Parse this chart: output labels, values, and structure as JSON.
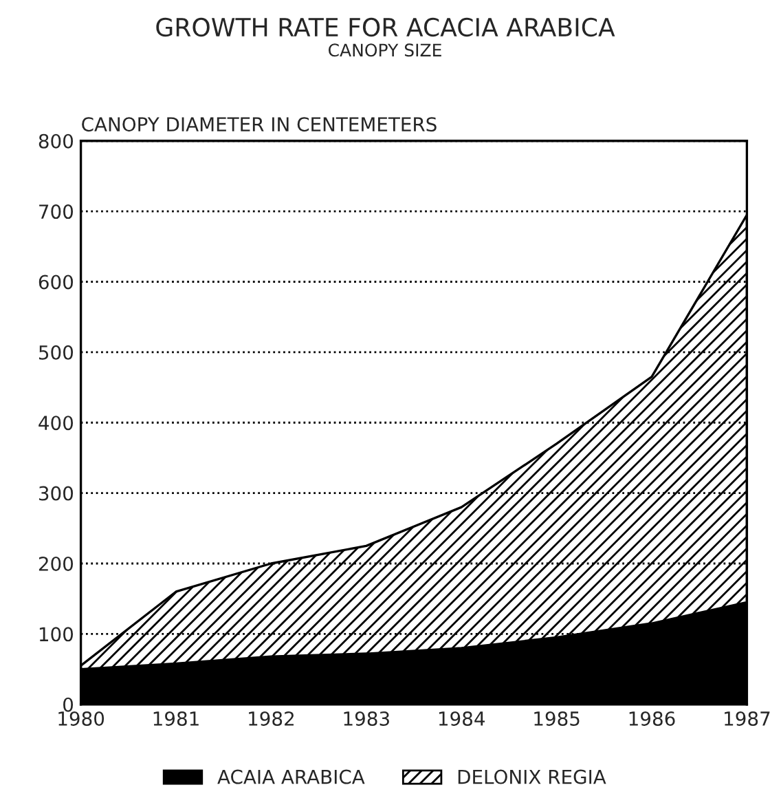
{
  "chart_data": {
    "type": "area",
    "title": "GROWTH RATE FOR ACACIA ARABICA",
    "subtitle": "CANOPY SIZE",
    "ylabel": "CANOPY DIAMETER IN CENTEMETERS",
    "stacked": true,
    "x": [
      1980,
      1981,
      1982,
      1983,
      1984,
      1985,
      1986,
      1987
    ],
    "series": [
      {
        "name": "ACAIA ARABICA",
        "color": "#000000",
        "values": [
          50,
          58,
          68,
          72,
          80,
          95,
          115,
          145
        ]
      },
      {
        "name": "DELONIX REGIA",
        "color": "#000000",
        "values": [
          5,
          102,
          132,
          153,
          200,
          275,
          350,
          550
        ]
      }
    ],
    "xlim": [
      1980,
      1987
    ],
    "xticks": [
      1980,
      1981,
      1982,
      1983,
      1984,
      1985,
      1986,
      1987
    ],
    "ylim": [
      0,
      800
    ],
    "yticks": [
      0,
      100,
      200,
      300,
      400,
      500,
      600,
      700,
      800
    ],
    "grid": "y",
    "legend": "bottom"
  }
}
